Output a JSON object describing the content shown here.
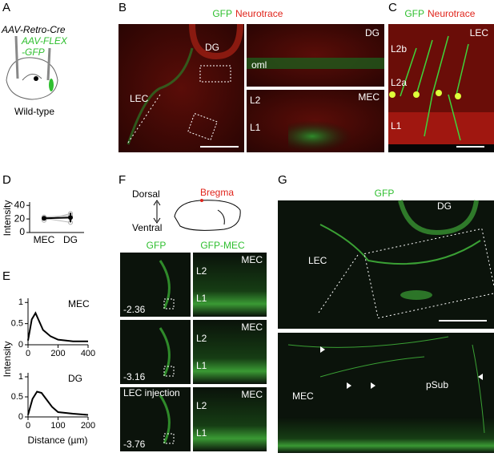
{
  "panels": {
    "A": {
      "letter": "A",
      "virus1": "AAV-Retro-Cre",
      "virus2": "AAV-FLEX",
      "virus3": "-GFP",
      "mouse": "Wild-type"
    },
    "B": {
      "letter": "B",
      "stain1": "GFP",
      "stain2": "Neurotrace",
      "overview": {
        "dg": "DG",
        "lec": "LEC"
      },
      "top": {
        "region": "DG",
        "layer": "oml"
      },
      "bottom": {
        "region": "MEC",
        "l2": "L2",
        "l1": "L1"
      }
    },
    "C": {
      "letter": "C",
      "stain1": "GFP",
      "stain2": "Neurotrace",
      "region": "LEC",
      "l2b": "L2b",
      "l2a": "L2a",
      "l1": "L1"
    },
    "D": {
      "letter": "D",
      "ylabel": "Intensity",
      "categories": [
        "MEC",
        "DG"
      ],
      "ylim": [
        0,
        45
      ],
      "yticks": [
        0,
        20,
        40
      ],
      "means": [
        21,
        22
      ],
      "errors": [
        2,
        7
      ],
      "animals": [
        [
          18,
          28
        ],
        [
          23,
          25
        ],
        [
          21,
          15
        ]
      ]
    },
    "E": {
      "letter": "E",
      "ylabel": "Intensity",
      "xlabel": "Distance (µm)",
      "plots": [
        {
          "title": "MEC",
          "x": [
            0,
            25,
            50,
            75,
            100,
            150,
            200,
            300,
            400
          ],
          "y": [
            0.1,
            0.6,
            0.75,
            0.55,
            0.35,
            0.2,
            0.12,
            0.08,
            0.08
          ],
          "xlim": [
            0,
            400
          ],
          "xticks": [
            0,
            200,
            400
          ],
          "ylim": [
            0,
            1.1
          ],
          "yticks": [
            0,
            0.5,
            1
          ]
        },
        {
          "title": "DG",
          "x": [
            0,
            15,
            30,
            45,
            60,
            80,
            100,
            150,
            200
          ],
          "y": [
            0.05,
            0.45,
            0.63,
            0.6,
            0.45,
            0.25,
            0.12,
            0.08,
            0.05
          ],
          "xlim": [
            0,
            200
          ],
          "xticks": [
            0,
            100,
            200
          ],
          "ylim": [
            0,
            1.1
          ],
          "yticks": [
            0,
            0.5,
            1
          ]
        }
      ]
    },
    "F": {
      "letter": "F",
      "dorsal": "Dorsal",
      "ventral": "Ventral",
      "bregma": "Bregma",
      "col1": "GFP",
      "col2": "GFP-MEC",
      "rows": [
        {
          "label": "-2.36",
          "region": "MEC",
          "l2": "L2",
          "l1": "L1"
        },
        {
          "label": "-3.16",
          "region": "MEC",
          "l2": "L2",
          "l1": "L1"
        },
        {
          "label": "LEC injection",
          "sub": "-3.76",
          "region": "MEC",
          "l2": "L2",
          "l1": "L1"
        }
      ]
    },
    "G": {
      "letter": "G",
      "stain": "GFP",
      "top": {
        "dg": "DG",
        "lec": "LEC"
      },
      "bottom": {
        "mec": "MEC",
        "psub": "pSub"
      }
    }
  }
}
